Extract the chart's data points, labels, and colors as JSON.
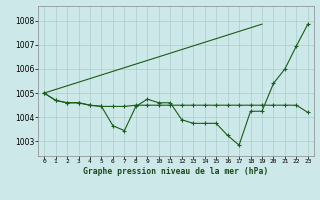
{
  "title": "Graphe pression niveau de la mer (hPa)",
  "background_color": "#cce8e8",
  "grid_color": "#aacece",
  "line_color": "#1a5c1a",
  "ylim": [
    1002.4,
    1008.6
  ],
  "yticks": [
    1003,
    1004,
    1005,
    1006,
    1007,
    1008
  ],
  "series": [
    [
      1005.0,
      1004.7,
      1004.6,
      1004.6,
      1004.5,
      1004.45,
      1003.65,
      1003.45,
      1004.45,
      1004.75,
      1004.6,
      1004.6,
      1003.9,
      1003.75,
      1003.75,
      1003.75,
      1003.25,
      1002.85,
      1004.25,
      1004.25,
      1005.4,
      1006.0,
      1006.95,
      1007.85
    ],
    [
      1005.0,
      1004.7,
      1004.6,
      1004.6,
      1004.5,
      1004.45,
      1004.45,
      1004.45,
      1004.5,
      1004.5,
      1004.5,
      1004.5,
      1004.5,
      1004.5,
      1004.5,
      1004.5,
      1004.5,
      1004.5,
      1004.5,
      1004.5,
      1004.5,
      1004.5,
      1004.5,
      1004.2
    ],
    [
      1005.0,
      1005.15,
      1005.3,
      1005.45,
      1005.6,
      1005.75,
      1005.9,
      1006.05,
      1006.2,
      1006.35,
      1006.5,
      1006.65,
      1006.8,
      1006.95,
      1007.1,
      1007.25,
      1007.4,
      1007.55,
      1007.7,
      1007.85,
      null,
      null,
      null,
      null
    ]
  ],
  "series_with_markers": [
    0,
    1
  ],
  "series_no_markers": [
    2
  ]
}
